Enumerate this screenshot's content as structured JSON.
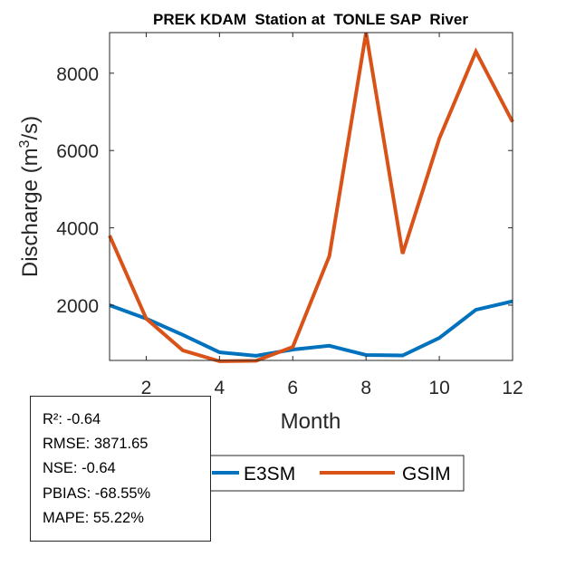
{
  "chart_data": {
    "type": "line",
    "title": "PREK KDAM  Station at  TONLE SAP  River",
    "xlabel": "Month",
    "ylabel_main": "Discharge (m",
    "ylabel_sup": "3",
    "ylabel_tail": "/s)",
    "xlim": [
      1,
      12
    ],
    "ylim": [
      570,
      9050
    ],
    "xticks": [
      2,
      4,
      6,
      8,
      10,
      12
    ],
    "yticks": [
      2000,
      4000,
      6000,
      8000
    ],
    "x": [
      1,
      2,
      3,
      4,
      5,
      6,
      7,
      8,
      9,
      10,
      11,
      12
    ],
    "series": [
      {
        "name": "E3SM",
        "color": "#0072BD",
        "values": [
          2000,
          1650,
          1230,
          780,
          690,
          850,
          950,
          710,
          700,
          1150,
          1880,
          2100
        ]
      },
      {
        "name": "GSIM",
        "color": "#D95319",
        "values": [
          3800,
          1650,
          830,
          550,
          560,
          920,
          3270,
          9050,
          3330,
          6310,
          8560,
          6740
        ]
      }
    ],
    "legend": {
      "placement": "bottom-outside",
      "orientation": "horizontal"
    },
    "grid": false
  },
  "stats": {
    "r2": "R²: -0.64",
    "rmse": "RMSE: 3871.65",
    "nse": "NSE: -0.64",
    "pbias": "PBIAS: -68.55%",
    "mape": "MAPE: 55.22%"
  }
}
